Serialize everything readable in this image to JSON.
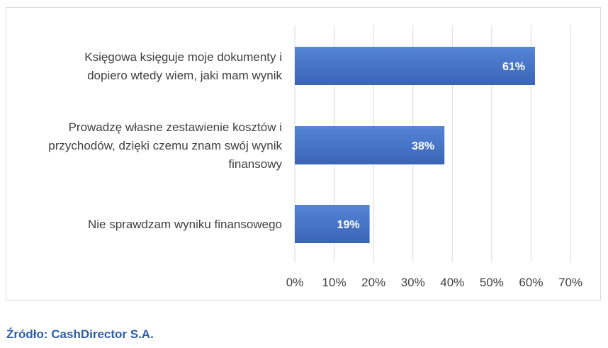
{
  "chart_data": {
    "type": "bar",
    "orientation": "horizontal",
    "categories": [
      [
        "Księgowa księguje moje dokumenty i",
        "dopiero wtedy wiem, jaki mam wynik"
      ],
      [
        "Prowadzę własne zestawienie kosztów i",
        "przychodów, dzięki czemu znam swój wynik",
        "finansowy"
      ],
      [
        "Nie sprawdzam wyniku finansowego"
      ]
    ],
    "values": [
      61,
      38,
      19
    ],
    "value_labels": [
      "61%",
      "38%",
      "19%"
    ],
    "xlim": [
      0,
      70
    ],
    "xticks": [
      "0%",
      "10%",
      "20%",
      "30%",
      "40%",
      "50%",
      "60%",
      "70%"
    ],
    "grid": "vertical",
    "bar_color": "#4472c4",
    "bar_color_dark": "#3a62b0"
  },
  "source": "Źródło: CashDirector S.A."
}
